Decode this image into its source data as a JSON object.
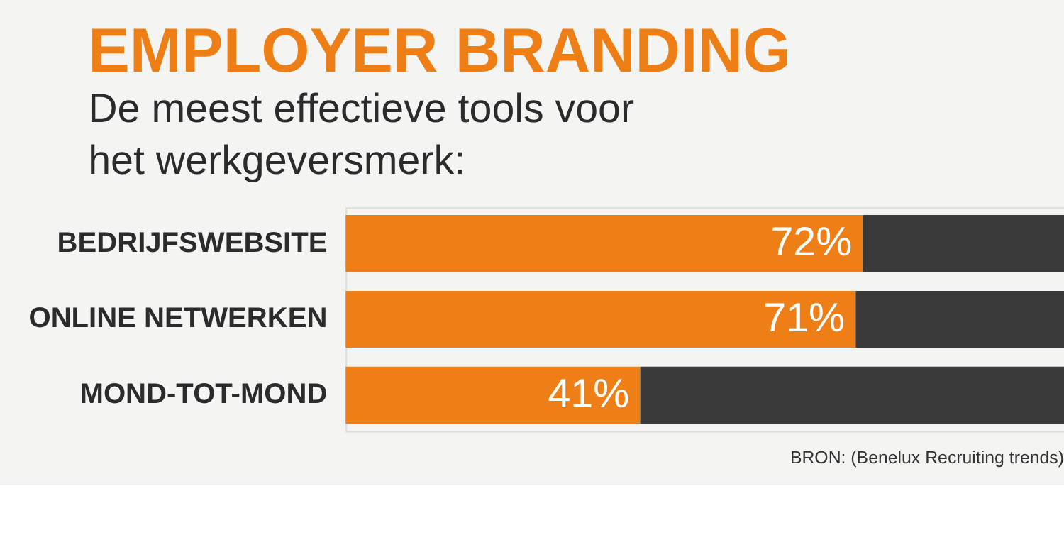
{
  "chart_data": {
    "type": "bar",
    "orientation": "horizontal",
    "stacked": true,
    "title": "EMPLOYER BRANDING",
    "subtitle": [
      "De meest effectieve tools voor",
      "het werkgeversmerk:"
    ],
    "categories": [
      "BEDRIJFSWEBSITE",
      "ONLINE NETWERKEN",
      "MOND-TOT-MOND"
    ],
    "series": [
      {
        "color": "#ee7f16",
        "values": [
          72,
          71,
          41
        ],
        "value_labels": [
          "72%",
          "71%",
          "41%"
        ]
      },
      {
        "color": "#3a3a3a",
        "values": [
          28,
          29,
          59
        ]
      }
    ],
    "xlim": [
      0,
      100
    ],
    "tick_labels": "y",
    "grid": false,
    "annotations": [
      "BRON: (Benelux Recruiting trends)"
    ]
  }
}
